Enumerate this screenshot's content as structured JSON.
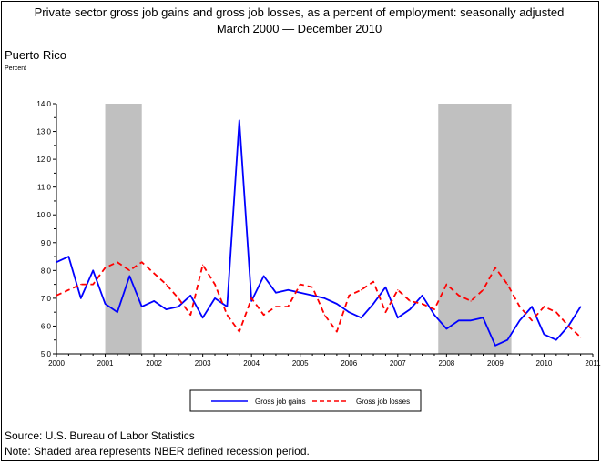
{
  "chart_data": {
    "type": "line",
    "title": "Private sector gross job gains and gross job losses, as a percent of employment: seasonally adjusted",
    "subtitle": "March 2000 — December 2010",
    "region": "Puerto Rico",
    "ylabel": "Percent",
    "ylim": [
      5.0,
      14.0
    ],
    "yticks": [
      "5.0",
      "6.0",
      "7.0",
      "8.0",
      "9.0",
      "10.0",
      "11.0",
      "12.0",
      "13.0",
      "14.0"
    ],
    "xlim": [
      2000,
      2011
    ],
    "xticks": [
      "2000",
      "2001",
      "2002",
      "2003",
      "2004",
      "2005",
      "2006",
      "2007",
      "2008",
      "2009",
      "2010",
      "2011"
    ],
    "grid": false,
    "legend_position": "bottom-center",
    "recessions": [
      {
        "start": 2001.0,
        "end": 2001.75
      },
      {
        "start": 2007.83,
        "end": 2009.33
      }
    ],
    "series": [
      {
        "name": "Gross job gains",
        "color": "#0000ff",
        "style": "solid",
        "x": [
          2000.0,
          2000.25,
          2000.5,
          2000.75,
          2001.0,
          2001.25,
          2001.5,
          2001.75,
          2002.0,
          2002.25,
          2002.5,
          2002.75,
          2003.0,
          2003.25,
          2003.5,
          2003.75,
          2004.0,
          2004.25,
          2004.5,
          2004.75,
          2005.0,
          2005.25,
          2005.5,
          2005.75,
          2006.0,
          2006.25,
          2006.5,
          2006.75,
          2007.0,
          2007.25,
          2007.5,
          2007.75,
          2008.0,
          2008.25,
          2008.5,
          2008.75,
          2009.0,
          2009.25,
          2009.5,
          2009.75,
          2010.0,
          2010.25,
          2010.5,
          2010.75
        ],
        "values": [
          8.3,
          8.5,
          7.0,
          8.0,
          6.8,
          6.5,
          7.8,
          6.7,
          6.9,
          6.6,
          6.7,
          7.1,
          6.3,
          7.0,
          6.7,
          13.4,
          6.9,
          7.8,
          7.2,
          7.3,
          7.2,
          7.1,
          7.0,
          6.8,
          6.5,
          6.3,
          6.8,
          7.4,
          6.3,
          6.6,
          7.1,
          6.4,
          5.9,
          6.2,
          6.2,
          6.3,
          5.3,
          5.5,
          6.2,
          6.7,
          5.7,
          5.5,
          6.0,
          6.7
        ]
      },
      {
        "name": "Gross job losses",
        "color": "#ff0000",
        "style": "dashed",
        "x": [
          2000.0,
          2000.25,
          2000.5,
          2000.75,
          2001.0,
          2001.25,
          2001.5,
          2001.75,
          2002.0,
          2002.25,
          2002.5,
          2002.75,
          2003.0,
          2003.25,
          2003.5,
          2003.75,
          2004.0,
          2004.25,
          2004.5,
          2004.75,
          2005.0,
          2005.25,
          2005.5,
          2005.75,
          2006.0,
          2006.25,
          2006.5,
          2006.75,
          2007.0,
          2007.25,
          2007.5,
          2007.75,
          2008.0,
          2008.25,
          2008.5,
          2008.75,
          2009.0,
          2009.25,
          2009.5,
          2009.75,
          2010.0,
          2010.25,
          2010.5,
          2010.75
        ],
        "values": [
          7.1,
          7.3,
          7.5,
          7.5,
          8.1,
          8.3,
          8.0,
          8.3,
          7.9,
          7.5,
          7.0,
          6.4,
          8.2,
          7.5,
          6.4,
          5.8,
          7.0,
          6.4,
          6.7,
          6.7,
          7.5,
          7.4,
          6.4,
          5.8,
          7.1,
          7.3,
          7.6,
          6.5,
          7.3,
          6.9,
          6.8,
          6.6,
          7.5,
          7.1,
          6.9,
          7.3,
          8.1,
          7.5,
          6.7,
          6.2,
          6.7,
          6.5,
          6.0,
          5.6
        ]
      }
    ]
  },
  "footer": {
    "source": "Source: U.S. Bureau of Labor Statistics",
    "note": "Note: Shaded area represents NBER defined recession period."
  }
}
